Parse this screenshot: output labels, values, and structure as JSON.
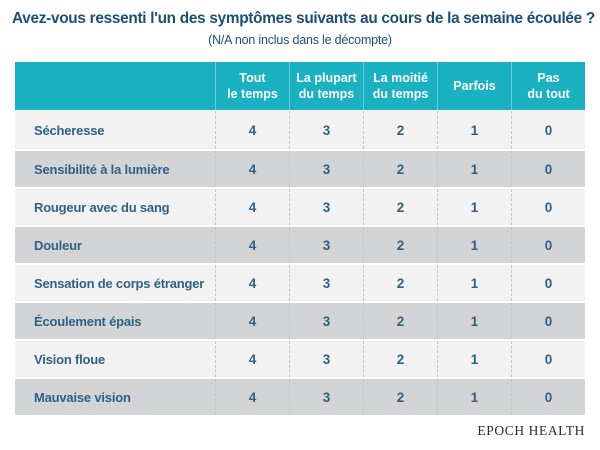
{
  "page": {
    "title": "Avez-vous ressenti l'un des symptômes suivants au cours de la semaine écoulée ?",
    "subtitle": "(N/A non inclus dans le décompte)",
    "footer_brand": "EPOCH HEALTH"
  },
  "colors": {
    "page_bg": "#ffffff",
    "header_bg": "#1ab2c2",
    "header_text": "#ffffff",
    "title_text": "#1d4e79",
    "cell_text": "#2e6284",
    "row_light": "#f2f2f3",
    "row_dark": "#d3d4d5"
  },
  "chart_data": {
    "type": "table",
    "title": "Avez-vous ressenti l'un des symptômes suivants au cours de la semaine écoulée ?",
    "note": "(N/A non inclus dans le décompte)",
    "columns": [
      "Tout\nle temps",
      "La plupart\ndu temps",
      "La moitié\ndu temps",
      "Parfois",
      "Pas\ndu tout"
    ],
    "rows": [
      {
        "label": "Sécheresse",
        "values": [
          4,
          3,
          2,
          1,
          0
        ]
      },
      {
        "label": "Sensibilité à la lumière",
        "values": [
          4,
          3,
          2,
          1,
          0
        ]
      },
      {
        "label": "Rougeur avec du sang",
        "values": [
          4,
          3,
          2,
          1,
          0
        ]
      },
      {
        "label": "Douleur",
        "values": [
          4,
          3,
          2,
          1,
          0
        ]
      },
      {
        "label": "Sensation de corps étranger",
        "values": [
          4,
          3,
          2,
          1,
          0
        ]
      },
      {
        "label": "Écoulement épais",
        "values": [
          4,
          3,
          2,
          1,
          0
        ]
      },
      {
        "label": "Vision floue",
        "values": [
          4,
          3,
          2,
          1,
          0
        ]
      },
      {
        "label": "Mauvaise vision",
        "values": [
          4,
          3,
          2,
          1,
          0
        ]
      }
    ],
    "source": "EPOCH HEALTH"
  }
}
